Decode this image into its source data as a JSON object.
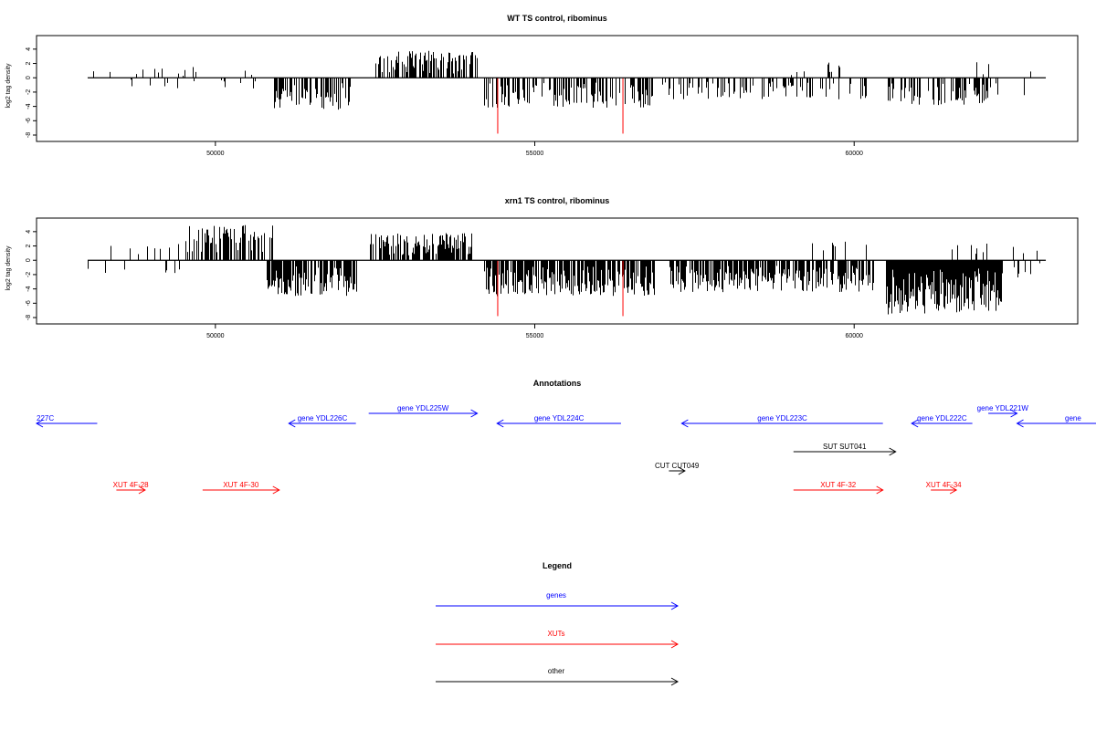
{
  "colors": {
    "genes": "#0000ff",
    "xuts": "#ff0000",
    "other": "#000000",
    "highlight": "#ff0000",
    "bars": "#000000"
  },
  "chart_data": [
    {
      "type": "bar",
      "title": "WT TS control, ribominus",
      "ylabel": "log2 tag density",
      "xlim": [
        47200,
        63500
      ],
      "ylim": [
        -8,
        5
      ],
      "x_ticks": [
        50000,
        55000,
        60000
      ],
      "x_tick_labels": [
        "50000",
        "55000",
        "60000"
      ],
      "y_ticks": [
        4,
        2,
        0,
        -2,
        -4,
        -6,
        -8
      ],
      "y_tick_labels": [
        "4",
        "2",
        "0",
        "-2",
        "-4",
        "-6",
        "-8"
      ],
      "grid": false,
      "x_range_data": [
        48000,
        63000
      ],
      "highlight_bars": [
        {
          "x": 54420,
          "y": -7.8
        },
        {
          "x": 56380,
          "y": -7.8
        }
      ],
      "density_regions": [
        {
          "x_start": 48000,
          "x_end": 50900,
          "sign": "mixed",
          "max_abs": 1.5,
          "density": 0.12
        },
        {
          "x_start": 50900,
          "x_end": 52100,
          "sign": "negative",
          "max_abs": 4.5,
          "density": 0.6
        },
        {
          "x_start": 52500,
          "x_end": 54100,
          "sign": "positive",
          "max_abs": 3.8,
          "density": 0.6
        },
        {
          "x_start": 54200,
          "x_end": 56900,
          "sign": "negative",
          "max_abs": 4.2,
          "density": 0.5
        },
        {
          "x_start": 57000,
          "x_end": 60200,
          "sign": "negative",
          "max_abs": 3.0,
          "density": 0.3
        },
        {
          "x_start": 59000,
          "x_end": 60100,
          "sign": "positive",
          "max_abs": 2.2,
          "density": 0.08
        },
        {
          "x_start": 60500,
          "x_end": 62100,
          "sign": "negative",
          "max_abs": 4.0,
          "density": 0.5
        },
        {
          "x_start": 61900,
          "x_end": 63000,
          "sign": "mixed",
          "max_abs": 2.5,
          "density": 0.12
        }
      ]
    },
    {
      "type": "bar",
      "title": "xrn1 TS control, ribominus",
      "ylabel": "log2 tag density",
      "xlim": [
        47200,
        63500
      ],
      "ylim": [
        -8,
        5
      ],
      "x_ticks": [
        50000,
        55000,
        60000
      ],
      "x_tick_labels": [
        "50000",
        "55000",
        "60000"
      ],
      "y_ticks": [
        4,
        2,
        0,
        -2,
        -4,
        -6,
        -8
      ],
      "y_tick_labels": [
        "4",
        "2",
        "0",
        "-2",
        "-4",
        "-6",
        "-8"
      ],
      "grid": false,
      "x_range_data": [
        48000,
        63000
      ],
      "highlight_bars": [
        {
          "x": 54420,
          "y": -7.8
        },
        {
          "x": 56380,
          "y": -7.8
        }
      ],
      "density_regions": [
        {
          "x_start": 48000,
          "x_end": 49500,
          "sign": "mixed",
          "max_abs": 2.5,
          "density": 0.25
        },
        {
          "x_start": 49500,
          "x_end": 50900,
          "sign": "positive",
          "max_abs": 5.0,
          "density": 0.55
        },
        {
          "x_start": 50800,
          "x_end": 52200,
          "sign": "negative",
          "max_abs": 5.0,
          "density": 0.75
        },
        {
          "x_start": 52400,
          "x_end": 54000,
          "sign": "positive",
          "max_abs": 3.8,
          "density": 0.7
        },
        {
          "x_start": 54200,
          "x_end": 56900,
          "sign": "negative",
          "max_abs": 5.0,
          "density": 0.8
        },
        {
          "x_start": 57100,
          "x_end": 60300,
          "sign": "negative",
          "max_abs": 4.5,
          "density": 0.7
        },
        {
          "x_start": 59300,
          "x_end": 60200,
          "sign": "positive",
          "max_abs": 2.8,
          "density": 0.15
        },
        {
          "x_start": 60500,
          "x_end": 62300,
          "sign": "negative",
          "max_abs": 7.6,
          "density": 1.0
        },
        {
          "x_start": 61500,
          "x_end": 63000,
          "sign": "mixed",
          "max_abs": 2.5,
          "density": 0.2
        }
      ]
    }
  ],
  "annotations": {
    "title": "Annotations",
    "features": [
      {
        "label": "227C",
        "type": "gene",
        "strand": "-",
        "x_start": 46500,
        "x_end": 48150,
        "row": 0
      },
      {
        "label": "gene YDL226C",
        "type": "gene",
        "strand": "-",
        "x_start": 51150,
        "x_end": 52200,
        "row": 0
      },
      {
        "label": "gene YDL225W",
        "type": "gene",
        "strand": "+",
        "x_start": 52400,
        "x_end": 54100,
        "row": -1
      },
      {
        "label": "gene YDL224C",
        "type": "gene",
        "strand": "-",
        "x_start": 54410,
        "x_end": 56350,
        "row": 0
      },
      {
        "label": "gene YDL223C",
        "type": "gene",
        "strand": "-",
        "x_start": 57300,
        "x_end": 60450,
        "row": 0
      },
      {
        "label": "gene YDL222C",
        "type": "gene",
        "strand": "-",
        "x_start": 60900,
        "x_end": 61850,
        "row": 0
      },
      {
        "label": "gene YDL221W",
        "type": "gene",
        "strand": "+",
        "x_start": 62100,
        "x_end": 62550,
        "row": -1
      },
      {
        "label": "gene",
        "type": "gene",
        "strand": "-",
        "x_start": 62550,
        "x_end": 64500,
        "row": 0
      },
      {
        "label": "SUT SUT041",
        "type": "other",
        "strand": "+",
        "x_start": 59050,
        "x_end": 60650,
        "row": 1
      },
      {
        "label": "CUT CUT049",
        "type": "other",
        "strand": "+",
        "x_start": 57100,
        "x_end": 57350,
        "row": 2
      },
      {
        "label": "XUT 4F-28",
        "type": "xut",
        "strand": "+",
        "x_start": 48450,
        "x_end": 48900,
        "row": 3
      },
      {
        "label": "XUT 4F-30",
        "type": "xut",
        "strand": "+",
        "x_start": 49800,
        "x_end": 51000,
        "row": 3
      },
      {
        "label": "XUT 4F-32",
        "type": "xut",
        "strand": "+",
        "x_start": 59050,
        "x_end": 60450,
        "row": 3
      },
      {
        "label": "XUT 4F-34",
        "type": "xut",
        "strand": "+",
        "x_start": 61200,
        "x_end": 61600,
        "row": 3
      }
    ]
  },
  "legend": {
    "title": "Legend",
    "items": [
      {
        "label": "genes",
        "type": "gene"
      },
      {
        "label": "XUTs",
        "type": "xut"
      },
      {
        "label": "other",
        "type": "other"
      }
    ]
  }
}
